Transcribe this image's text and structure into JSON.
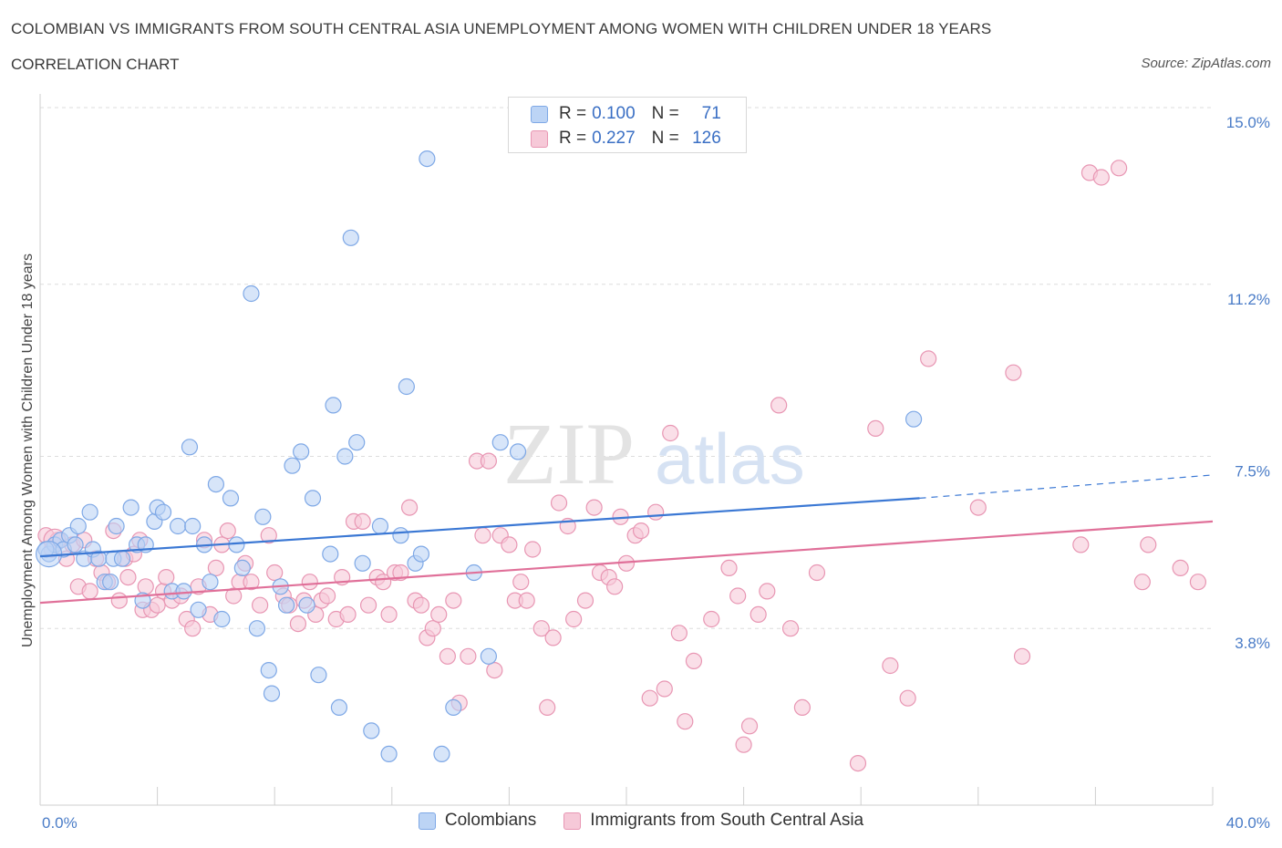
{
  "header": {
    "title": "COLOMBIAN VS IMMIGRANTS FROM SOUTH CENTRAL ASIA UNEMPLOYMENT AMONG WOMEN WITH CHILDREN UNDER 18 YEARS",
    "subtitle": "CORRELATION CHART",
    "source": "Source: ZipAtlas.com"
  },
  "watermark": {
    "zip": "ZIP",
    "atlas": "atlas"
  },
  "colors": {
    "blue_fill": "#bcd4f5",
    "blue_stroke": "#7ea8e6",
    "blue_line": "#3b78d4",
    "pink_fill": "#f6c9d8",
    "pink_stroke": "#e896b3",
    "pink_line": "#e07099",
    "tick_text": "#4a7cc7",
    "grid": "#dddddd"
  },
  "legend": {
    "rows": [
      {
        "r_label": "R =",
        "r_value": "0.100",
        "n_label": "N =",
        "n_value": "71"
      },
      {
        "r_label": "R =",
        "r_value": "0.227",
        "n_label": "N =",
        "n_value": "126"
      }
    ]
  },
  "bottom_legend": [
    "Colombians",
    "Immigrants from South Central Asia"
  ],
  "chart_data": {
    "type": "scatter",
    "title": "COLOMBIAN VS IMMIGRANTS FROM SOUTH CENTRAL ASIA UNEMPLOYMENT AMONG WOMEN WITH CHILDREN UNDER 18 YEARS",
    "xlabel": "",
    "ylabel": "Unemployment Among Women with Children Under 18 years",
    "xlim": [
      0,
      40
    ],
    "ylim": [
      0,
      15
    ],
    "x_tick_labels": [
      "0.0%",
      "40.0%"
    ],
    "y_ticks": [
      3.8,
      7.5,
      11.2,
      15.0
    ],
    "y_tick_labels": [
      "3.8%",
      "7.5%",
      "11.2%",
      "15.0%"
    ],
    "grid": "horizontal-dashed",
    "legend_placement": "top-center",
    "series": [
      {
        "name": "Colombians",
        "R": 0.1,
        "N": 71,
        "trend": {
          "x": [
            0,
            30
          ],
          "y": [
            5.35,
            6.6
          ],
          "dashed_extension_to": [
            40,
            7.1
          ]
        },
        "points": [
          [
            0.3,
            5.4
          ],
          [
            0.5,
            5.6
          ],
          [
            0.7,
            5.7
          ],
          [
            0.8,
            5.5
          ],
          [
            1.0,
            5.8
          ],
          [
            1.2,
            5.6
          ],
          [
            1.3,
            6.0
          ],
          [
            1.5,
            5.3
          ],
          [
            1.7,
            6.3
          ],
          [
            1.8,
            5.5
          ],
          [
            2.0,
            5.3
          ],
          [
            2.2,
            4.8
          ],
          [
            2.4,
            4.8
          ],
          [
            2.5,
            5.3
          ],
          [
            2.6,
            6.0
          ],
          [
            2.8,
            5.3
          ],
          [
            3.1,
            6.4
          ],
          [
            3.3,
            5.6
          ],
          [
            3.5,
            4.4
          ],
          [
            3.6,
            5.6
          ],
          [
            3.9,
            6.1
          ],
          [
            4.0,
            6.4
          ],
          [
            4.2,
            6.3
          ],
          [
            4.5,
            4.6
          ],
          [
            4.7,
            6.0
          ],
          [
            4.9,
            4.6
          ],
          [
            5.1,
            7.7
          ],
          [
            5.2,
            6.0
          ],
          [
            5.4,
            4.2
          ],
          [
            5.6,
            5.6
          ],
          [
            5.8,
            4.8
          ],
          [
            6.0,
            6.9
          ],
          [
            6.2,
            4.0
          ],
          [
            6.5,
            6.6
          ],
          [
            6.7,
            5.6
          ],
          [
            6.9,
            5.1
          ],
          [
            7.2,
            11.0
          ],
          [
            7.4,
            3.8
          ],
          [
            7.6,
            6.2
          ],
          [
            7.8,
            2.9
          ],
          [
            7.9,
            2.4
          ],
          [
            8.2,
            4.7
          ],
          [
            8.4,
            4.3
          ],
          [
            8.6,
            7.3
          ],
          [
            8.9,
            7.6
          ],
          [
            9.1,
            4.3
          ],
          [
            9.3,
            6.6
          ],
          [
            9.5,
            2.8
          ],
          [
            9.9,
            5.4
          ],
          [
            10.0,
            8.6
          ],
          [
            10.2,
            2.1
          ],
          [
            10.4,
            7.5
          ],
          [
            10.6,
            12.2
          ],
          [
            10.8,
            7.8
          ],
          [
            11.0,
            5.2
          ],
          [
            11.3,
            1.6
          ],
          [
            11.6,
            6.0
          ],
          [
            11.9,
            1.1
          ],
          [
            12.3,
            5.8
          ],
          [
            12.5,
            9.0
          ],
          [
            12.8,
            5.2
          ],
          [
            13.0,
            5.4
          ],
          [
            13.2,
            13.9
          ],
          [
            13.7,
            1.1
          ],
          [
            14.1,
            2.1
          ],
          [
            14.8,
            5.0
          ],
          [
            15.3,
            3.2
          ],
          [
            15.7,
            7.8
          ],
          [
            16.3,
            7.6
          ],
          [
            29.8,
            8.3
          ],
          [
            0.2,
            5.5
          ]
        ]
      },
      {
        "name": "Immigrants from South Central Asia",
        "R": 0.227,
        "N": 126,
        "trend": {
          "x": [
            0,
            40
          ],
          "y": [
            4.35,
            6.1
          ]
        },
        "points": [
          [
            0.2,
            5.8
          ],
          [
            0.4,
            5.5
          ],
          [
            0.6,
            5.7
          ],
          [
            0.9,
            5.3
          ],
          [
            1.1,
            5.6
          ],
          [
            1.3,
            4.7
          ],
          [
            1.5,
            5.7
          ],
          [
            1.7,
            4.6
          ],
          [
            1.9,
            5.3
          ],
          [
            2.1,
            5.0
          ],
          [
            2.3,
            4.8
          ],
          [
            2.5,
            5.9
          ],
          [
            2.7,
            4.4
          ],
          [
            2.9,
            5.3
          ],
          [
            3.0,
            4.9
          ],
          [
            3.2,
            5.4
          ],
          [
            3.4,
            5.7
          ],
          [
            3.5,
            4.2
          ],
          [
            3.6,
            4.7
          ],
          [
            3.8,
            4.2
          ],
          [
            4.0,
            4.3
          ],
          [
            4.2,
            4.6
          ],
          [
            4.3,
            4.9
          ],
          [
            4.5,
            4.4
          ],
          [
            4.8,
            4.5
          ],
          [
            5.0,
            4.0
          ],
          [
            5.2,
            3.8
          ],
          [
            5.4,
            4.7
          ],
          [
            5.6,
            5.7
          ],
          [
            5.8,
            4.1
          ],
          [
            6.0,
            5.1
          ],
          [
            6.2,
            5.6
          ],
          [
            6.4,
            5.9
          ],
          [
            6.6,
            4.5
          ],
          [
            6.8,
            4.8
          ],
          [
            7.0,
            5.2
          ],
          [
            7.2,
            4.8
          ],
          [
            7.5,
            4.3
          ],
          [
            7.8,
            5.8
          ],
          [
            8.0,
            5.0
          ],
          [
            8.3,
            4.5
          ],
          [
            8.5,
            4.3
          ],
          [
            8.8,
            3.9
          ],
          [
            9.0,
            4.4
          ],
          [
            9.2,
            4.8
          ],
          [
            9.4,
            4.1
          ],
          [
            9.6,
            4.4
          ],
          [
            9.8,
            4.5
          ],
          [
            10.1,
            4.0
          ],
          [
            10.3,
            4.9
          ],
          [
            10.5,
            4.1
          ],
          [
            10.7,
            6.1
          ],
          [
            11.0,
            6.1
          ],
          [
            11.2,
            4.3
          ],
          [
            11.5,
            4.9
          ],
          [
            11.7,
            4.8
          ],
          [
            11.9,
            4.1
          ],
          [
            12.1,
            5.0
          ],
          [
            12.3,
            5.0
          ],
          [
            12.6,
            6.4
          ],
          [
            12.8,
            4.4
          ],
          [
            13.0,
            4.3
          ],
          [
            13.2,
            3.6
          ],
          [
            13.4,
            3.8
          ],
          [
            13.6,
            4.1
          ],
          [
            13.9,
            3.2
          ],
          [
            14.1,
            4.4
          ],
          [
            14.3,
            2.2
          ],
          [
            14.6,
            3.2
          ],
          [
            14.9,
            7.4
          ],
          [
            15.1,
            5.8
          ],
          [
            15.3,
            7.4
          ],
          [
            15.5,
            2.9
          ],
          [
            15.7,
            5.8
          ],
          [
            16.0,
            5.6
          ],
          [
            16.2,
            4.4
          ],
          [
            16.4,
            4.8
          ],
          [
            16.6,
            4.4
          ],
          [
            16.8,
            5.5
          ],
          [
            17.1,
            3.8
          ],
          [
            17.3,
            2.1
          ],
          [
            17.5,
            3.6
          ],
          [
            17.7,
            6.5
          ],
          [
            18.0,
            6.0
          ],
          [
            18.2,
            4.0
          ],
          [
            18.6,
            4.4
          ],
          [
            18.9,
            6.4
          ],
          [
            19.1,
            5.0
          ],
          [
            19.4,
            4.9
          ],
          [
            19.6,
            4.7
          ],
          [
            19.8,
            6.2
          ],
          [
            20.0,
            5.2
          ],
          [
            20.3,
            5.8
          ],
          [
            20.5,
            5.9
          ],
          [
            20.8,
            2.3
          ],
          [
            21.0,
            6.3
          ],
          [
            21.3,
            2.5
          ],
          [
            21.5,
            8.0
          ],
          [
            21.8,
            3.7
          ],
          [
            22.0,
            1.8
          ],
          [
            22.3,
            3.1
          ],
          [
            22.9,
            4.0
          ],
          [
            23.5,
            5.1
          ],
          [
            23.8,
            4.5
          ],
          [
            24.0,
            1.3
          ],
          [
            24.2,
            1.7
          ],
          [
            24.5,
            4.1
          ],
          [
            24.8,
            4.6
          ],
          [
            25.2,
            8.6
          ],
          [
            25.6,
            3.8
          ],
          [
            26.0,
            2.1
          ],
          [
            26.5,
            5.0
          ],
          [
            27.9,
            0.9
          ],
          [
            28.5,
            8.1
          ],
          [
            29.0,
            3.0
          ],
          [
            29.6,
            2.3
          ],
          [
            30.3,
            9.6
          ],
          [
            32.0,
            6.4
          ],
          [
            33.2,
            9.3
          ],
          [
            33.5,
            3.2
          ],
          [
            35.5,
            5.6
          ],
          [
            35.8,
            13.6
          ],
          [
            36.2,
            13.5
          ],
          [
            36.8,
            13.7
          ],
          [
            37.6,
            4.8
          ],
          [
            37.8,
            5.6
          ],
          [
            38.9,
            5.1
          ],
          [
            39.5,
            4.8
          ]
        ]
      }
    ]
  }
}
